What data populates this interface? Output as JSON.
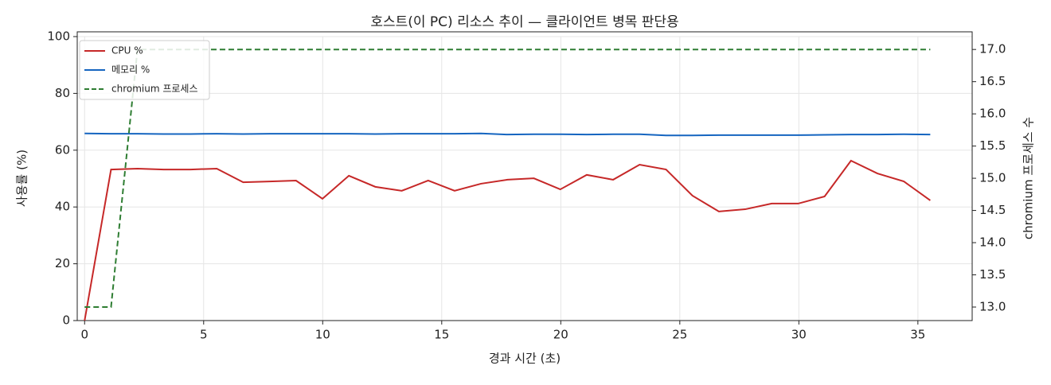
{
  "chart_data": {
    "type": "line",
    "title": "호스트(이 PC) 리소스 추이 — 클라이언트 병목 판단용",
    "x_label": "경과 시간 (초)",
    "y_label": "사용률 (%)",
    "y2_label": "chromium 프로세스 수",
    "x": [
      0,
      1.11,
      2.22,
      3.33,
      4.44,
      5.55,
      6.66,
      7.77,
      8.88,
      9.99,
      11.1,
      12.21,
      13.32,
      14.43,
      15.54,
      16.65,
      17.76,
      18.87,
      19.98,
      21.09,
      22.2,
      23.31,
      24.42,
      25.53,
      26.64,
      27.75,
      28.86,
      29.97,
      31.08,
      32.19,
      33.3,
      34.41,
      35.52
    ],
    "series": [
      {
        "name": "CPU %",
        "color": "#c62828",
        "dash": false,
        "values": [
          0,
          53.2,
          53.5,
          53.2,
          53.2,
          53.5,
          48.7,
          49.0,
          49.3,
          42.9,
          51.0,
          47.1,
          45.7,
          49.3,
          45.7,
          48.2,
          49.6,
          50.1,
          46.2,
          51.3,
          49.6,
          54.9,
          53.2,
          44.0,
          38.4,
          39.2,
          41.2,
          41.2,
          43.7,
          56.3,
          51.8,
          49.0,
          42.3
        ]
      },
      {
        "name": "메모리 %",
        "color": "#1565c0",
        "dash": false,
        "values": [
          65.9,
          65.8,
          65.8,
          65.7,
          65.7,
          65.8,
          65.7,
          65.8,
          65.8,
          65.8,
          65.8,
          65.7,
          65.8,
          65.8,
          65.8,
          65.9,
          65.5,
          65.6,
          65.6,
          65.5,
          65.6,
          65.6,
          65.2,
          65.2,
          65.3,
          65.3,
          65.3,
          65.3,
          65.4,
          65.5,
          65.5,
          65.6,
          65.5
        ]
      },
      {
        "name": "chromium 프로세스",
        "color": "#2e7d32",
        "dash": true,
        "axis": "y2",
        "values": [
          13,
          13,
          17,
          17,
          17,
          17,
          17,
          17,
          17,
          17,
          17,
          17,
          17,
          17,
          17,
          17,
          17,
          17,
          17,
          17,
          17,
          17,
          17,
          17,
          17,
          17,
          17,
          17,
          17,
          17,
          17,
          17,
          17
        ]
      }
    ],
    "xlim": [
      -0.31,
      37.28
    ],
    "xticks": [
      0,
      5,
      10,
      15,
      20,
      25,
      30,
      35
    ],
    "ylim": [
      0,
      100
    ],
    "yticks": [
      0,
      20,
      40,
      60,
      80,
      100
    ],
    "y2lim": [
      12.79,
      17.2
    ],
    "y2ticks": [
      {
        "value": 13,
        "label": "13.0"
      },
      {
        "value": 13.5,
        "label": "13.5"
      },
      {
        "value": 14,
        "label": "14.0"
      },
      {
        "value": 14.5,
        "label": "14.5"
      },
      {
        "value": 15,
        "label": "15.0"
      },
      {
        "value": 15.5,
        "label": "15.5"
      },
      {
        "value": 16,
        "label": "16.0"
      },
      {
        "value": 16.5,
        "label": "16.5"
      },
      {
        "value": 17,
        "label": "17.0"
      }
    ],
    "grid": true,
    "legend": "upper-left"
  }
}
